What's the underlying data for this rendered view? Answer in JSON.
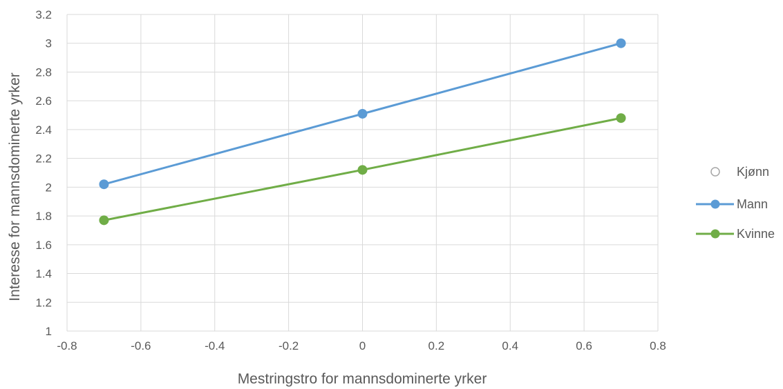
{
  "chart_data": {
    "type": "line",
    "xlabel": "Mestringstro for mannsdominerte yrker",
    "ylabel": "Interesse for mannsdominerte yrker",
    "xlim": [
      -0.8,
      0.8
    ],
    "ylim": [
      1,
      3.2
    ],
    "x_ticks": [
      "-0.8",
      "-0.6",
      "-0.4",
      "-0.2",
      "0",
      "0.2",
      "0.4",
      "0.6",
      "0.8"
    ],
    "y_ticks": [
      "1",
      "1.2",
      "1.4",
      "1.6",
      "1.8",
      "2",
      "2.2",
      "2.4",
      "2.6",
      "2.8",
      "3",
      "3.2"
    ],
    "grid": true,
    "legend_position": "right",
    "legend_title": "Kjønn",
    "series": [
      {
        "name": "Mann",
        "color": "#5b9bd5",
        "x": [
          -0.7,
          0,
          0.7
        ],
        "y": [
          2.02,
          2.51,
          3.0
        ]
      },
      {
        "name": "Kvinne",
        "color": "#70ad47",
        "x": [
          -0.7,
          0,
          0.7
        ],
        "y": [
          1.77,
          2.12,
          2.48
        ]
      }
    ]
  }
}
